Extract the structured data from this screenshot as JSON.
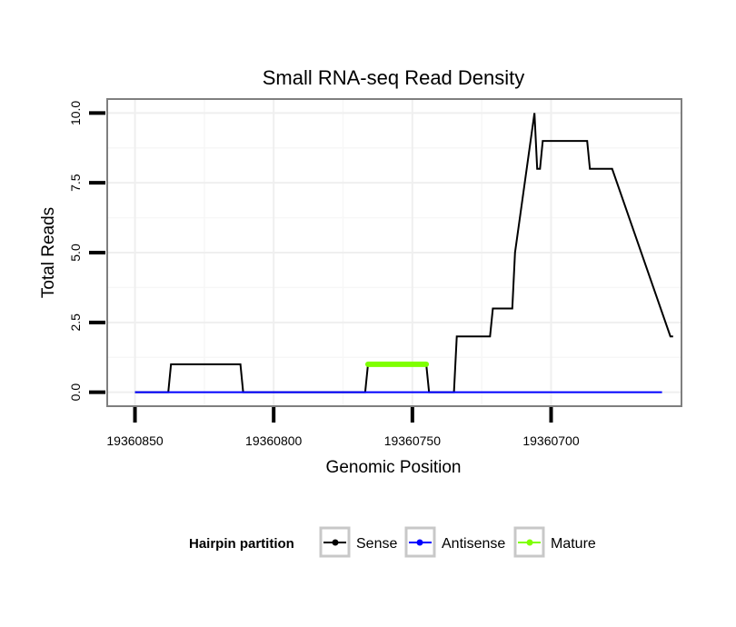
{
  "chart_data": {
    "type": "line",
    "title": "Small RNA-seq Read Density",
    "xlabel": "Genomic Position",
    "ylabel": "Total Reads",
    "x_reversed": true,
    "xlim": [
      19360860,
      19360653
    ],
    "ylim": [
      -0.5,
      10.5
    ],
    "x_ticks": [
      19360850,
      19360800,
      19360750,
      19360700
    ],
    "x_tick_labels": [
      "19360850",
      "19360800",
      "19360750",
      "19360700"
    ],
    "y_ticks": [
      0,
      2.5,
      5,
      7.5,
      10
    ],
    "y_tick_labels": [
      "0.0",
      "2.5",
      "5.0",
      "7.5",
      "10.0"
    ],
    "grid": true,
    "legend": {
      "title": "Hairpin partition",
      "position": "bottom",
      "entries": [
        "Sense",
        "Antisense",
        "Mature"
      ]
    },
    "series": [
      {
        "name": "Sense",
        "color": "#000000",
        "x": [
          19360850,
          19360838,
          19360837,
          19360812,
          19360811,
          19360767,
          19360766,
          19360745,
          19360744,
          19360735,
          19360734,
          19360733,
          19360722,
          19360721,
          19360714,
          19360713,
          19360706,
          19360705,
          19360704,
          19360703,
          19360702,
          19360701,
          19360700,
          19360687,
          19360686,
          19360679,
          19360678,
          19360657,
          19360656
        ],
        "values": [
          0,
          0,
          1,
          1,
          0,
          0,
          1,
          1,
          0,
          0,
          2,
          2,
          2,
          3,
          3,
          5,
          10,
          8,
          8,
          9,
          9,
          9,
          9,
          9,
          8,
          8,
          8,
          2,
          2
        ]
      },
      {
        "name": "Antisense",
        "color": "#0000ff",
        "x": [
          19360850,
          19360660
        ],
        "values": [
          0,
          0
        ]
      },
      {
        "name": "Mature",
        "color": "#7fff00",
        "x": [
          19360766,
          19360745
        ],
        "values": [
          1,
          1
        ]
      }
    ]
  }
}
